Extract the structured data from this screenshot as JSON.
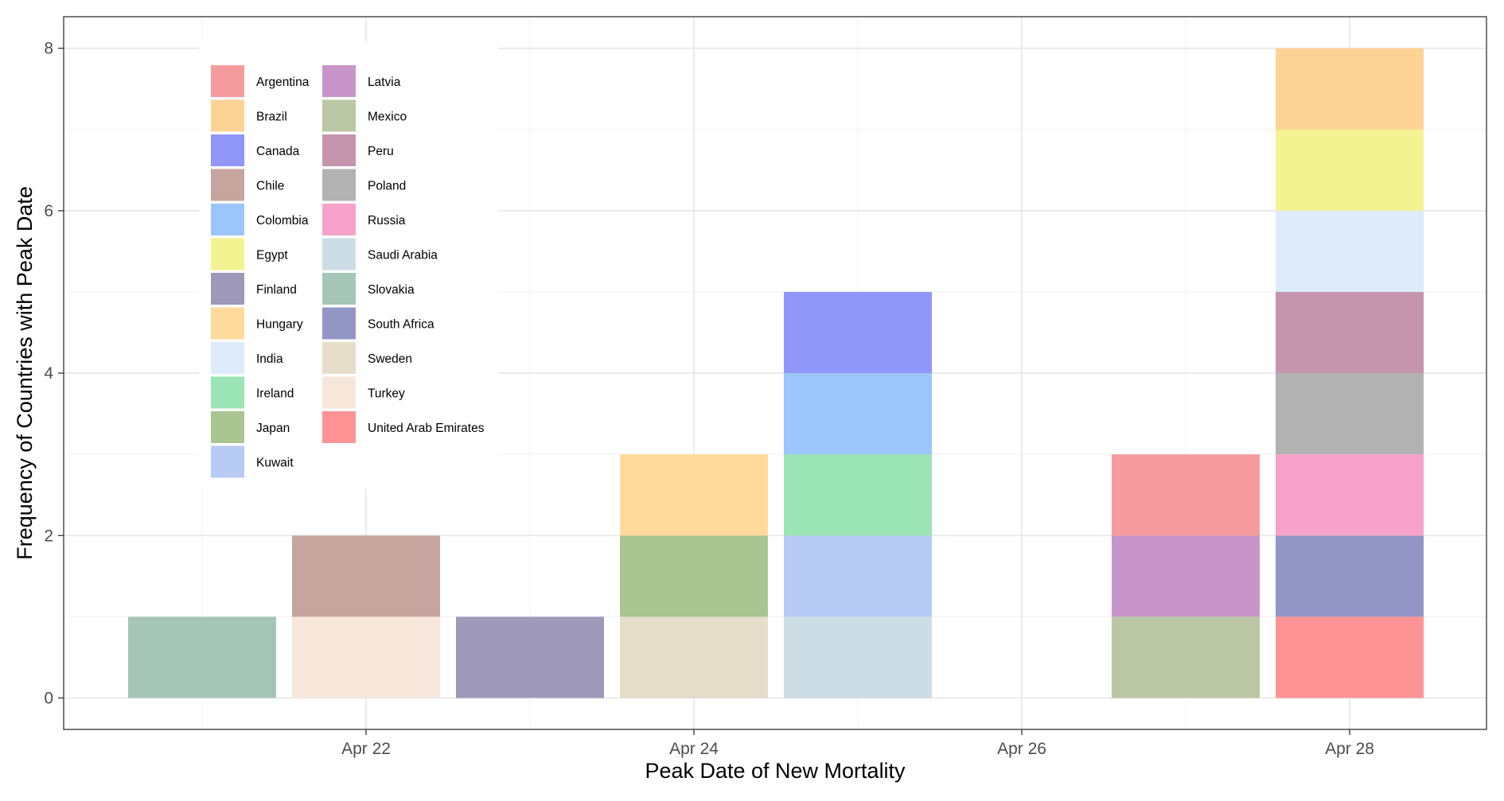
{
  "chart_data": {
    "type": "bar",
    "stacked": true,
    "title": "",
    "xlabel": "Peak Date of New Mortality",
    "ylabel": "Frequency of Countries with Peak Date",
    "x_tick_labels": [
      "Apr 22",
      "Apr 24",
      "Apr 26",
      "Apr 28"
    ],
    "y_tick_labels": [
      "0",
      "2",
      "4",
      "6",
      "8"
    ],
    "ylim": [
      0,
      8
    ],
    "xlim_days": [
      20.35,
      29.0
    ],
    "grid": true,
    "legend_position": "top-left inside",
    "legend_columns": 2,
    "legend": [
      {
        "name": "Argentina",
        "color": "#F69B9D"
      },
      {
        "name": "Brazil",
        "color": "#FDD396"
      },
      {
        "name": "Canada",
        "color": "#9196F9"
      },
      {
        "name": "Chile",
        "color": "#C5A59D"
      },
      {
        "name": "Colombia",
        "color": "#9CC5FB"
      },
      {
        "name": "Egypt",
        "color": "#F3F391"
      },
      {
        "name": "Finland",
        "color": "#9E98B9"
      },
      {
        "name": "Hungary",
        "color": "#FFDA9B"
      },
      {
        "name": "India",
        "color": "#DDEBFB"
      },
      {
        "name": "Ireland",
        "color": "#9AE4B5"
      },
      {
        "name": "Japan",
        "color": "#A9C591"
      },
      {
        "name": "Kuwait",
        "color": "#B8CBF5"
      },
      {
        "name": "Latvia",
        "color": "#C795C9"
      },
      {
        "name": "Mexico",
        "color": "#BBC6A4"
      },
      {
        "name": "Peru",
        "color": "#C595AE"
      },
      {
        "name": "Poland",
        "color": "#B2B2B2"
      },
      {
        "name": "Russia",
        "color": "#F6A2CA"
      },
      {
        "name": "Saudi Arabia",
        "color": "#CCDDE5"
      },
      {
        "name": "Slovakia",
        "color": "#A6C5B9"
      },
      {
        "name": "South Africa",
        "color": "#9396C5"
      },
      {
        "name": "Sweden",
        "color": "#E6DDCB"
      },
      {
        "name": "Turkey",
        "color": "#F7E7DA"
      },
      {
        "name": "United Arab Emirates",
        "color": "#FD9394"
      }
    ],
    "bars": [
      {
        "date": "Apr 21",
        "stack": [
          "Slovakia"
        ]
      },
      {
        "date": "Apr 22",
        "stack": [
          "Turkey",
          "Chile"
        ]
      },
      {
        "date": "Apr 23",
        "stack": [
          "Finland"
        ]
      },
      {
        "date": "Apr 24",
        "stack": [
          "Sweden",
          "Japan",
          "Hungary"
        ]
      },
      {
        "date": "Apr 25",
        "stack": [
          "Saudi Arabia",
          "Kuwait",
          "Ireland",
          "Colombia",
          "Canada"
        ]
      },
      {
        "date": "Apr 27",
        "stack": [
          "Mexico",
          "Latvia",
          "Argentina"
        ]
      },
      {
        "date": "Apr 28",
        "stack": [
          "United Arab Emirates",
          "South Africa",
          "Russia",
          "Poland",
          "Peru",
          "India",
          "Egypt",
          "Brazil"
        ]
      }
    ]
  }
}
